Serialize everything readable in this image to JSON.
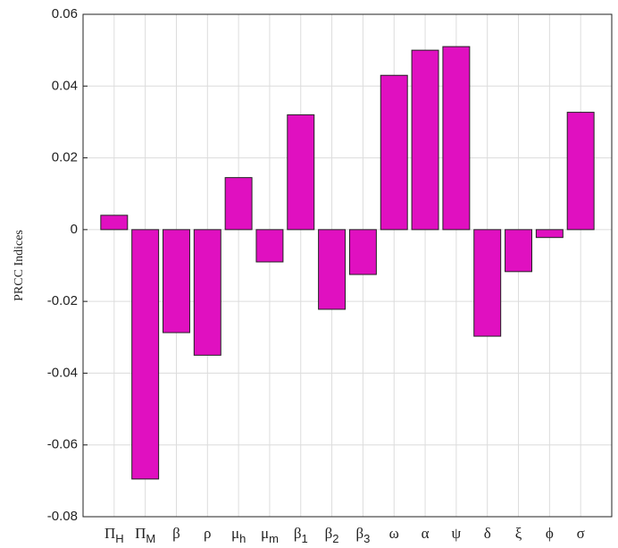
{
  "chart_data": {
    "type": "bar",
    "y_label": "PRCC Indices",
    "categories": [
      {
        "symbol": "Π",
        "subscript": "H"
      },
      {
        "symbol": "Π",
        "subscript": "M"
      },
      "β",
      "ρ",
      {
        "symbol": "μ",
        "subscript": "h"
      },
      {
        "symbol": "μ",
        "subscript": "m"
      },
      {
        "symbol": "β",
        "subscript": "1"
      },
      {
        "symbol": "β",
        "subscript": "2"
      },
      {
        "symbol": "β",
        "subscript": "3"
      },
      "ω",
      "α",
      "ψ",
      "δ",
      "ξ",
      "ϕ",
      "σ"
    ],
    "values": [
      0.004,
      -0.0695,
      -0.0287,
      -0.035,
      0.0145,
      -0.009,
      0.032,
      -0.0222,
      -0.0125,
      0.043,
      0.05,
      0.051,
      -0.0297,
      -0.0117,
      -0.0022,
      0.0327
    ],
    "color": "#e010c0",
    "ylim": [
      -0.08,
      0.06
    ],
    "yticks": [
      -0.08,
      -0.06,
      -0.04,
      -0.02,
      0,
      0.02,
      0.04,
      0.06
    ],
    "grid": true
  }
}
